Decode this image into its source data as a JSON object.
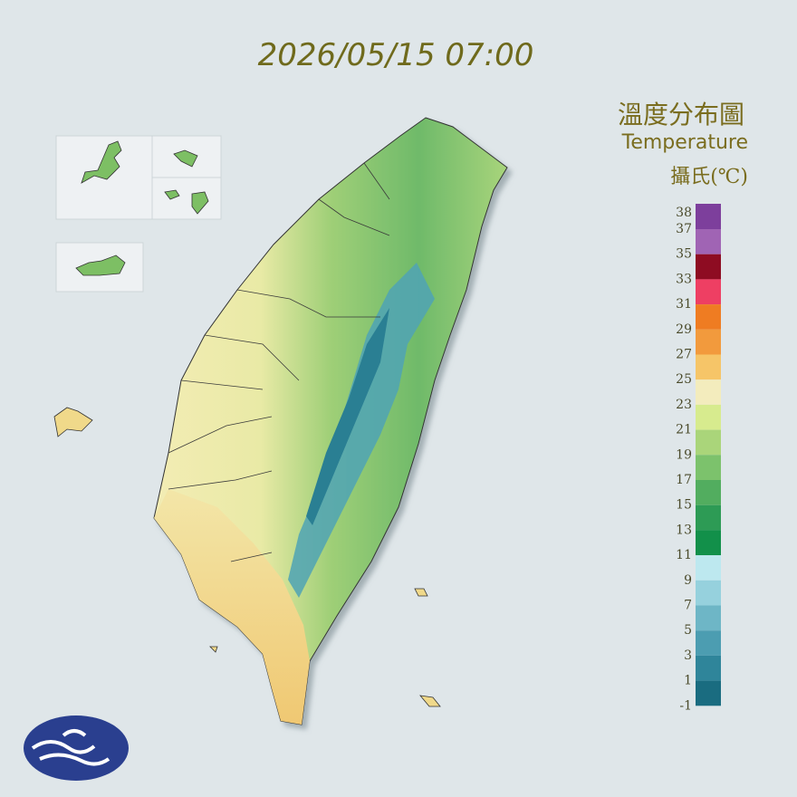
{
  "header": {
    "timestamp": "2026/05/15 07:00"
  },
  "legend": {
    "title": "溫度分布圖",
    "subtitle": "Temperature",
    "unit": "攝氏(℃)",
    "ticks": [
      38,
      37,
      35,
      33,
      31,
      29,
      27,
      25,
      23,
      21,
      19,
      17,
      15,
      13,
      11,
      9,
      7,
      5,
      3,
      1,
      -1
    ],
    "colors": [
      "#7d3f9c",
      "#a064b4",
      "#8e0c22",
      "#ee3f63",
      "#ef7c22",
      "#f29a3d",
      "#f6c568",
      "#f3ecbd",
      "#d7eb8e",
      "#aad57a",
      "#7cc26c",
      "#52ad5f",
      "#2d9b55",
      "#12904a",
      "#bde8ef",
      "#96d1dd",
      "#6eb6c6",
      "#4c9db1",
      "#2f859a",
      "#1a6c80"
    ]
  }
}
